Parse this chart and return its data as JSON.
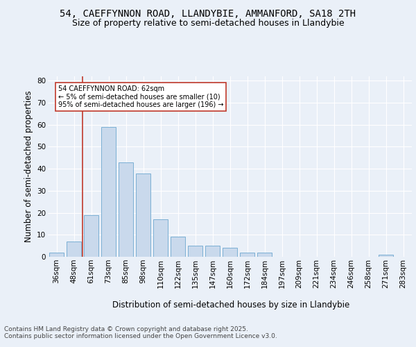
{
  "title1": "54, CAEFFYNNON ROAD, LLANDYBIE, AMMANFORD, SA18 2TH",
  "title2": "Size of property relative to semi-detached houses in Llandybie",
  "xlabel": "Distribution of semi-detached houses by size in Llandybie",
  "ylabel": "Number of semi-detached properties",
  "bin_labels": [
    "36sqm",
    "48sqm",
    "61sqm",
    "73sqm",
    "85sqm",
    "98sqm",
    "110sqm",
    "122sqm",
    "135sqm",
    "147sqm",
    "160sqm",
    "172sqm",
    "184sqm",
    "197sqm",
    "209sqm",
    "221sqm",
    "234sqm",
    "246sqm",
    "258sqm",
    "271sqm",
    "283sqm"
  ],
  "bar_values": [
    2,
    7,
    19,
    59,
    43,
    38,
    17,
    9,
    5,
    5,
    4,
    2,
    2,
    0,
    0,
    0,
    0,
    0,
    0,
    1,
    0
  ],
  "bar_color": "#c9d9ec",
  "bar_edge_color": "#7bafd4",
  "vline_color": "#c0392b",
  "annotation_text": "54 CAEFFYNNON ROAD: 62sqm\n← 5% of semi-detached houses are smaller (10)\n95% of semi-detached houses are larger (196) →",
  "annotation_box_color": "white",
  "annotation_box_edge": "#c0392b",
  "ylim": [
    0,
    82
  ],
  "yticks": [
    0,
    10,
    20,
    30,
    40,
    50,
    60,
    70,
    80
  ],
  "bg_color": "#eaf0f8",
  "plot_bg_color": "#eaf0f8",
  "footer_text": "Contains HM Land Registry data © Crown copyright and database right 2025.\nContains public sector information licensed under the Open Government Licence v3.0.",
  "title_fontsize": 10,
  "subtitle_fontsize": 9,
  "axis_label_fontsize": 8.5,
  "tick_fontsize": 7.5,
  "footer_fontsize": 6.5
}
